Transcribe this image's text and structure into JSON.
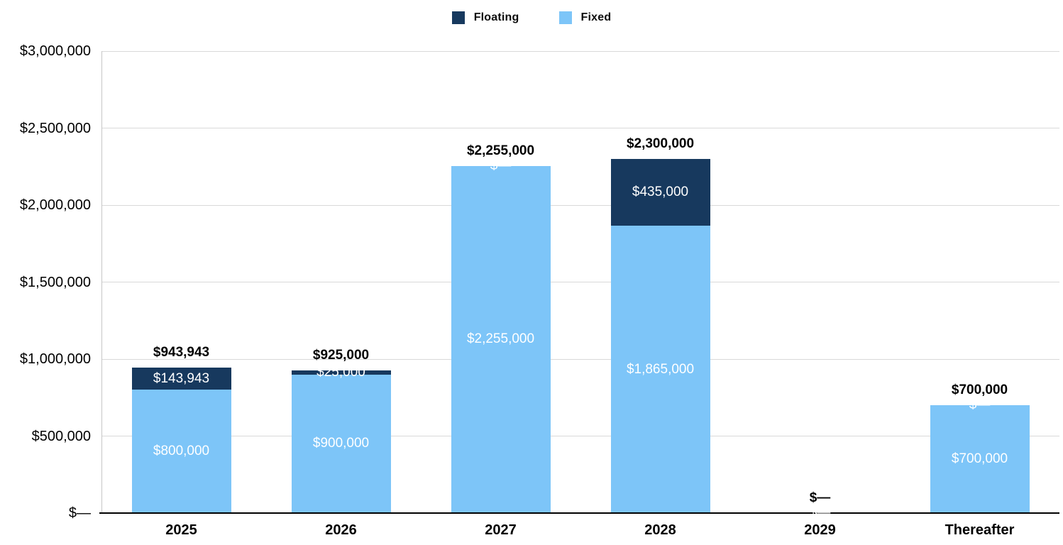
{
  "chart_data": {
    "type": "bar",
    "stacked": true,
    "title": "",
    "xlabel": "",
    "ylabel": "",
    "categories": [
      "2025",
      "2026",
      "2027",
      "2028",
      "2029",
      "Thereafter"
    ],
    "series": [
      {
        "name": "Floating",
        "color": "#17395E",
        "values": [
          143943,
          25000,
          0,
          435000,
          0,
          0
        ],
        "data_labels": [
          "$143,943",
          "$25,000",
          "$—",
          "$435,000",
          "$—",
          "$—"
        ]
      },
      {
        "name": "Fixed",
        "color": "#7DC5F8",
        "values": [
          800000,
          900000,
          2255000,
          1865000,
          0,
          700000
        ],
        "data_labels": [
          "$800,000",
          "$900,000",
          "$2,255,000",
          "$1,865,000",
          "",
          "$700,000"
        ]
      }
    ],
    "totals": [
      943943,
      925000,
      2255000,
      2300000,
      0,
      700000
    ],
    "total_labels": [
      "$943,943",
      "$925,000",
      "$2,255,000",
      "$2,300,000",
      "$—",
      "$700,000"
    ],
    "y_ticks": [
      "$3,000,000",
      "$2,500,000",
      "$2,000,000",
      "$1,500,000",
      "$1,000,000",
      "$500,000",
      "$—"
    ],
    "ylim": [
      0,
      3000000
    ],
    "grid": true,
    "legend_position": "top"
  }
}
